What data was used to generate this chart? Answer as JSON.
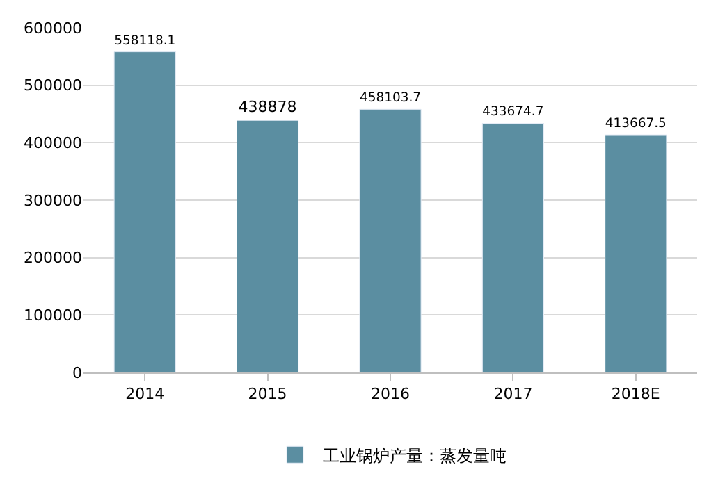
{
  "chart_data": {
    "type": "bar",
    "categories": [
      "2014",
      "2015",
      "2016",
      "2017",
      "2018E"
    ],
    "series": [
      {
        "name": "工业锅炉产量：蒸发量吨",
        "color": "#5b8ea1",
        "values": [
          558118.1,
          438878,
          458103.7,
          433674.7,
          413667.5
        ]
      }
    ],
    "ylim": [
      0,
      600000
    ],
    "yticks": [
      0,
      100000,
      200000,
      300000,
      400000,
      500000,
      600000
    ],
    "grid": "y",
    "legend": "bottom",
    "data_labels": true
  }
}
